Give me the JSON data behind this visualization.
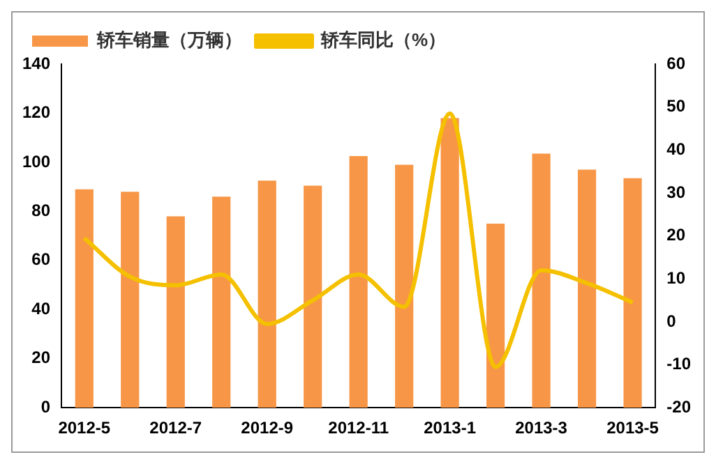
{
  "chart_data": {
    "type": "bar",
    "categories": [
      "2012-5",
      null,
      "2012-7",
      null,
      "2012-9",
      null,
      "2012-11",
      null,
      "2013-1",
      null,
      "2013-3",
      null,
      "2013-5"
    ],
    "series": [
      {
        "name": "轿车销量（万辆）",
        "color": "#f79646",
        "values": [
          89,
          88,
          78,
          86,
          92.5,
          90.5,
          102.5,
          99,
          118,
          75,
          103.5,
          97,
          93.5
        ]
      },
      {
        "name": "轿车同比（%）",
        "type": "line",
        "axis": "y2",
        "color": "#f5c000",
        "values": [
          19.5,
          10.5,
          8.5,
          11,
          -0.5,
          5,
          11,
          3.5,
          48.5,
          -10.5,
          12,
          9,
          4.5
        ]
      }
    ],
    "ylim": [
      0,
      140
    ],
    "yticks": [
      0,
      20,
      40,
      60,
      80,
      100,
      120,
      140
    ],
    "y2lim": [
      -20,
      60
    ],
    "y2ticks": [
      -20,
      -10,
      0,
      10,
      20,
      30,
      40,
      50,
      60
    ],
    "grid": false,
    "legend": "top left",
    "marker": "none"
  }
}
